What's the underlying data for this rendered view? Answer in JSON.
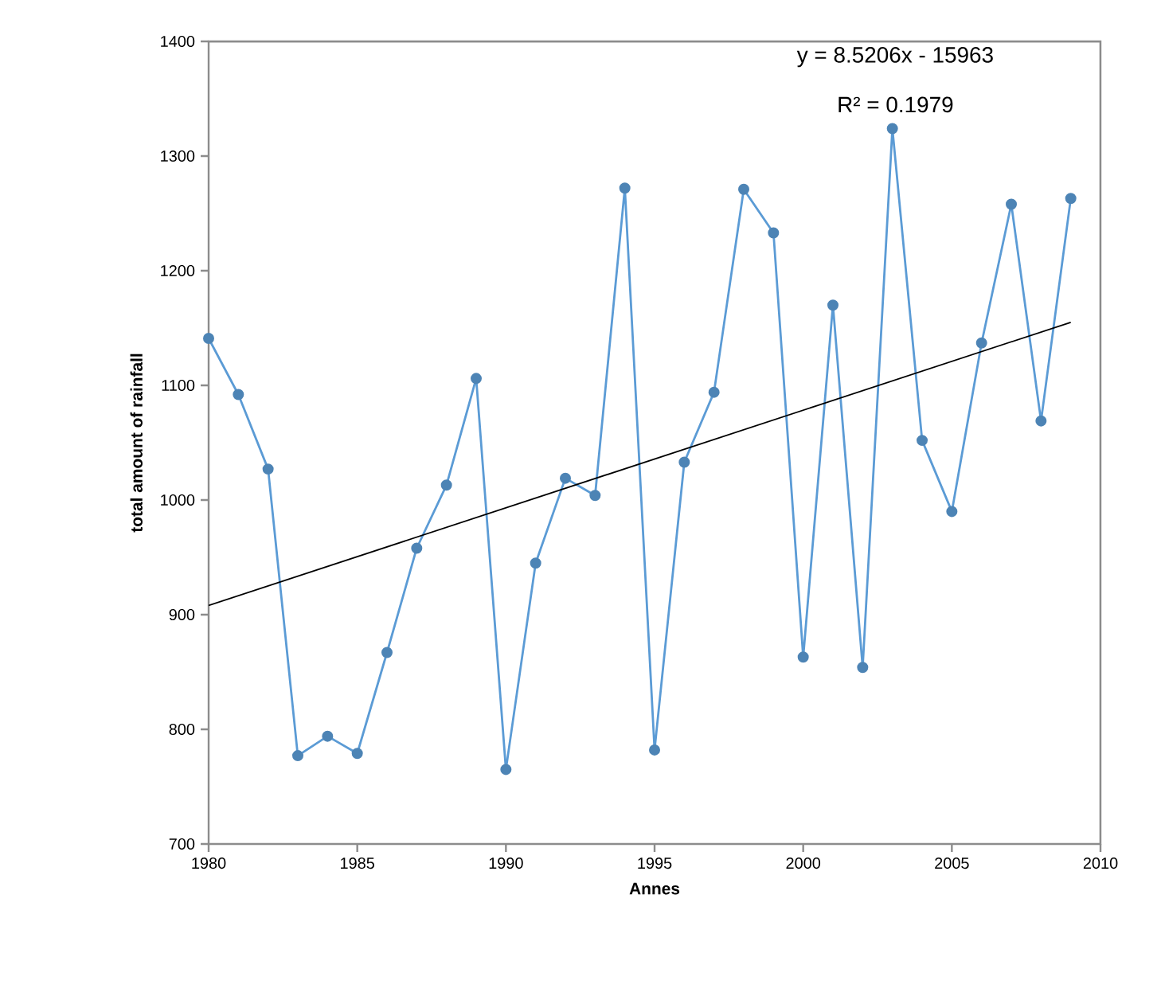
{
  "chart_data": {
    "type": "line",
    "xlabel": "Annes",
    "ylabel": "total amount of rainfall",
    "annotations": [
      "y = 8.5206x - 15963",
      "R² = 0.1979"
    ],
    "x": [
      1980,
      1981,
      1982,
      1983,
      1984,
      1985,
      1986,
      1987,
      1988,
      1989,
      1990,
      1991,
      1992,
      1993,
      1994,
      1995,
      1996,
      1997,
      1998,
      1999,
      2000,
      2001,
      2002,
      2003,
      2004,
      2005,
      2006,
      2007,
      2008,
      2009
    ],
    "series": [
      {
        "color": "#5b9bd5",
        "marker": "circle",
        "values": [
          1141,
          1092,
          1027,
          777,
          794,
          779,
          867,
          958,
          1013,
          1106,
          765,
          945,
          1019,
          1004,
          1272,
          782,
          1033,
          1094,
          1271,
          1233,
          863,
          1170,
          854,
          1324,
          1052,
          990,
          1137,
          1258,
          1069,
          1263
        ]
      },
      {
        "type": "line",
        "color": "#000000",
        "marker": "none",
        "x": [
          1980,
          2009
        ],
        "values": [
          908,
          1155
        ]
      }
    ],
    "xlim": [
      1980,
      2010
    ],
    "ylim": [
      700,
      1400
    ],
    "xticks": [
      1980,
      1985,
      1990,
      1995,
      2000,
      2005,
      2010
    ],
    "yticks": [
      700,
      800,
      900,
      1000,
      1100,
      1200,
      1300,
      1400
    ],
    "grid": false
  }
}
